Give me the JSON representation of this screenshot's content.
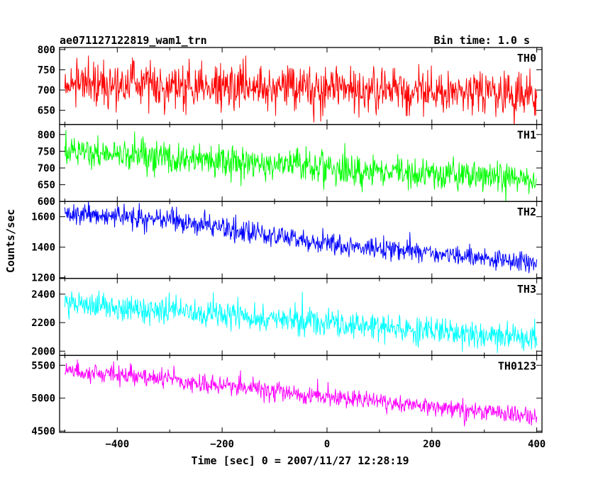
{
  "chart_data": {
    "type": "line",
    "title": "ae071127122819_wam1_trn",
    "subtitle": "Bin time: 1.0 s",
    "xlabel": "Time [sec] 0 = 2007/11/27 12:28:19",
    "ylabel": "Counts/sec",
    "xlim": [
      -510,
      410
    ],
    "x_ticks": [
      -400,
      -200,
      0,
      200,
      400
    ],
    "x_ticks_labels": [
      "−400",
      "−200",
      "0",
      "200",
      "400"
    ],
    "x_start": -500,
    "x_end": 400,
    "bin_time": 1.0,
    "grid": false,
    "panels": [
      {
        "name": "TH0",
        "color": "#ff0000",
        "ylim": [
          615,
          805
        ],
        "yticks": [
          650,
          700,
          750,
          800
        ],
        "trend": [
          [
            -500,
            715
          ],
          [
            -300,
            712
          ],
          [
            0,
            702
          ],
          [
            400,
            692
          ]
        ],
        "noise": 28,
        "spike": 20
      },
      {
        "name": "TH1",
        "color": "#00ff00",
        "ylim": [
          600,
          830
        ],
        "yticks": [
          600,
          650,
          700,
          750,
          800
        ],
        "trend": [
          [
            -500,
            755
          ],
          [
            -300,
            730
          ],
          [
            0,
            700
          ],
          [
            400,
            665
          ]
        ],
        "noise": 24,
        "spike": 20
      },
      {
        "name": "TH2",
        "color": "#0000ff",
        "ylim": [
          1195,
          1700
        ],
        "yticks": [
          1200,
          1400,
          1600
        ],
        "trend": [
          [
            -500,
            1625
          ],
          [
            -300,
            1580
          ],
          [
            0,
            1420
          ],
          [
            400,
            1295
          ]
        ],
        "noise": 34,
        "spike": 40
      },
      {
        "name": "TH3",
        "color": "#00ffff",
        "ylim": [
          1970,
          2510
        ],
        "yticks": [
          2000,
          2200,
          2400
        ],
        "trend": [
          [
            -500,
            2330
          ],
          [
            -300,
            2280
          ],
          [
            0,
            2200
          ],
          [
            400,
            2080
          ]
        ],
        "noise": 45,
        "spike": 60
      },
      {
        "name": "TH0123",
        "color": "#ff00ff",
        "ylim": [
          4480,
          5650
        ],
        "yticks": [
          4500,
          5000,
          5500
        ],
        "trend": [
          [
            -500,
            5430
          ],
          [
            -300,
            5280
          ],
          [
            0,
            5020
          ],
          [
            400,
            4720
          ]
        ],
        "noise": 70,
        "spike": 90
      }
    ]
  }
}
